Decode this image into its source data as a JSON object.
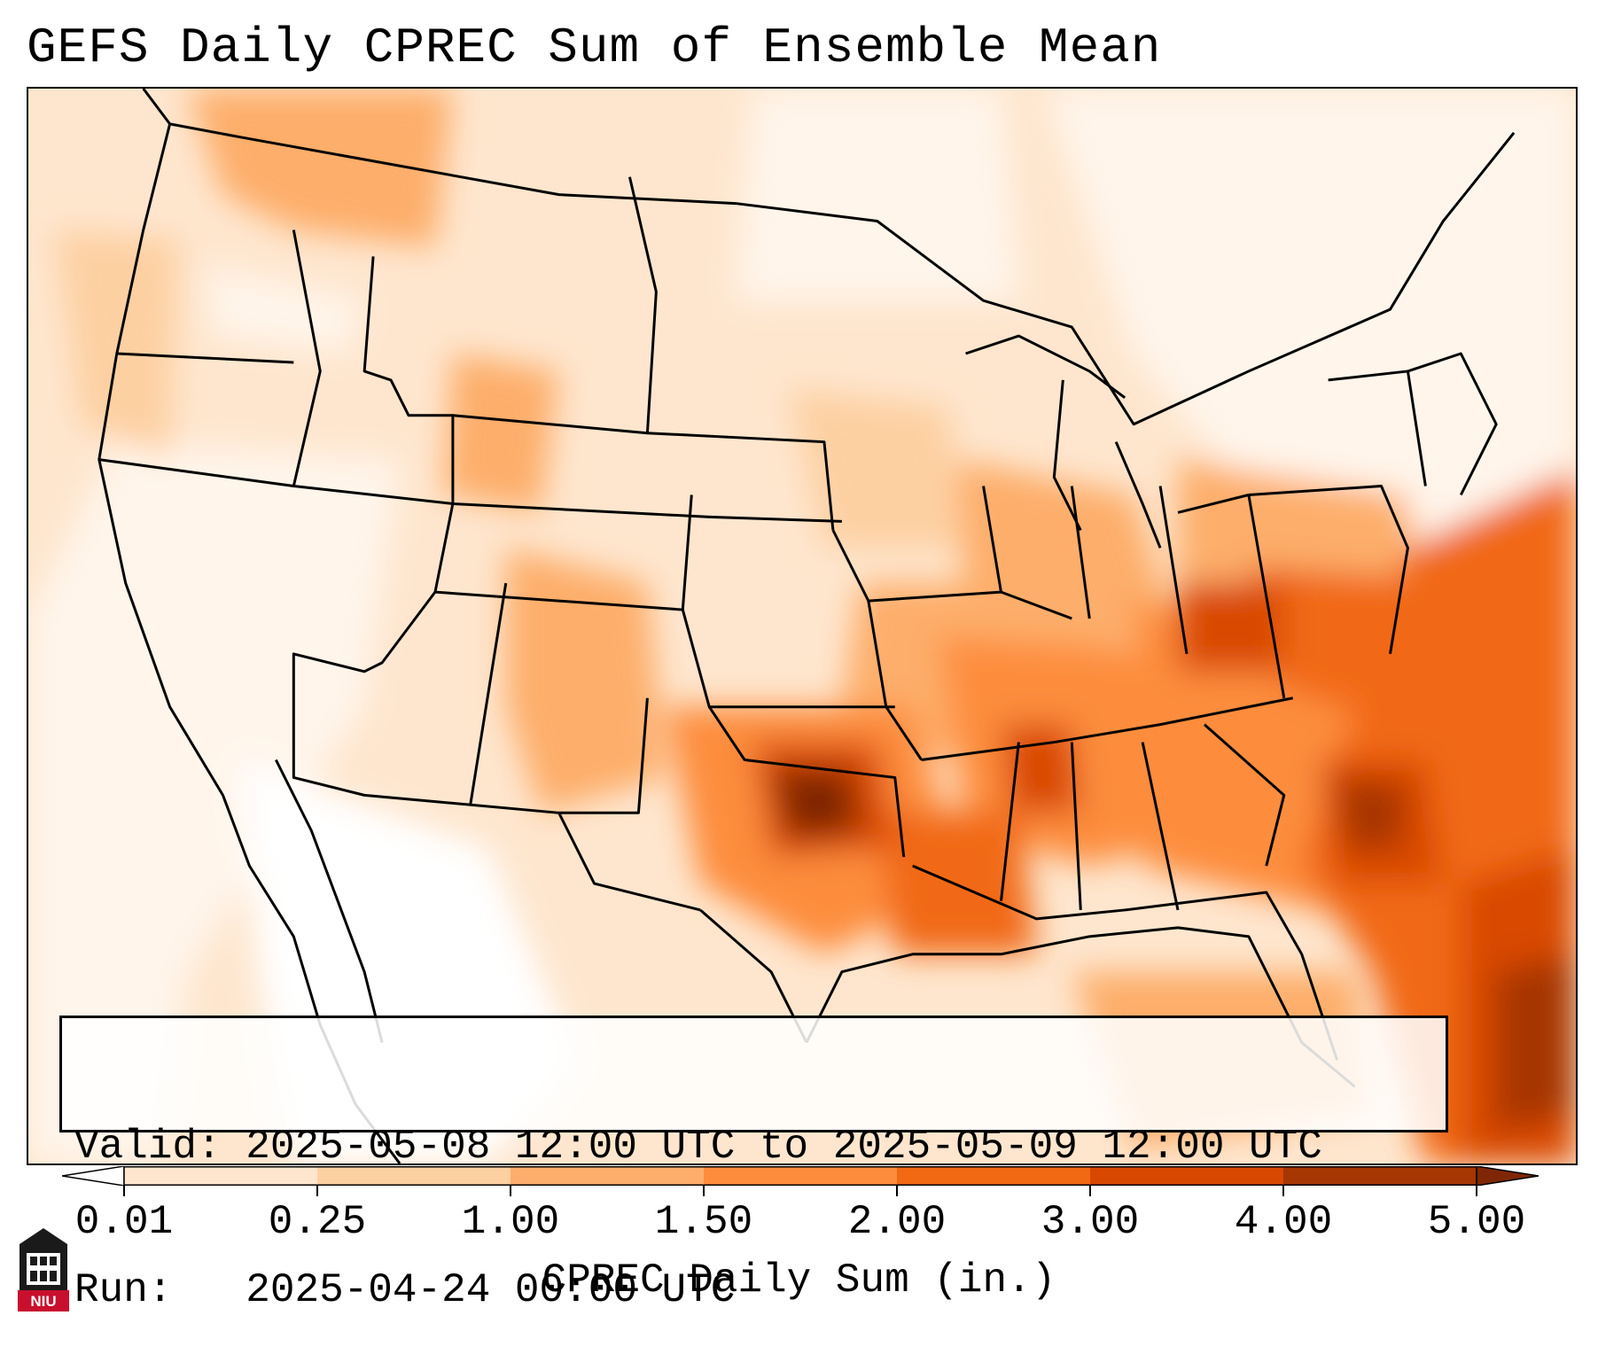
{
  "title": "GEFS Daily CPREC Sum of Ensemble Mean",
  "info": {
    "valid_label": "Valid:",
    "valid_value": "2025-05-08 12:00 UTC to 2025-05-09 12:00 UTC",
    "run_label": "Run:",
    "run_value": "2025-04-24 00:00 UTC"
  },
  "colorbar": {
    "label": "CPREC Daily Sum (in.)",
    "ticks": [
      "0.01",
      "0.25",
      "1.00",
      "1.50",
      "2.00",
      "3.00",
      "4.00",
      "5.00"
    ],
    "colors": [
      "#fff5eb",
      "#fee6ce",
      "#fdd0a2",
      "#fdae6b",
      "#fd8d3c",
      "#f16913",
      "#d94801",
      "#a63603",
      "#7f2704"
    ],
    "under_color": "#ffffff",
    "over_color": "#7f2704"
  },
  "logo": {
    "text": "NIU",
    "name": "niu-logo-icon"
  }
}
